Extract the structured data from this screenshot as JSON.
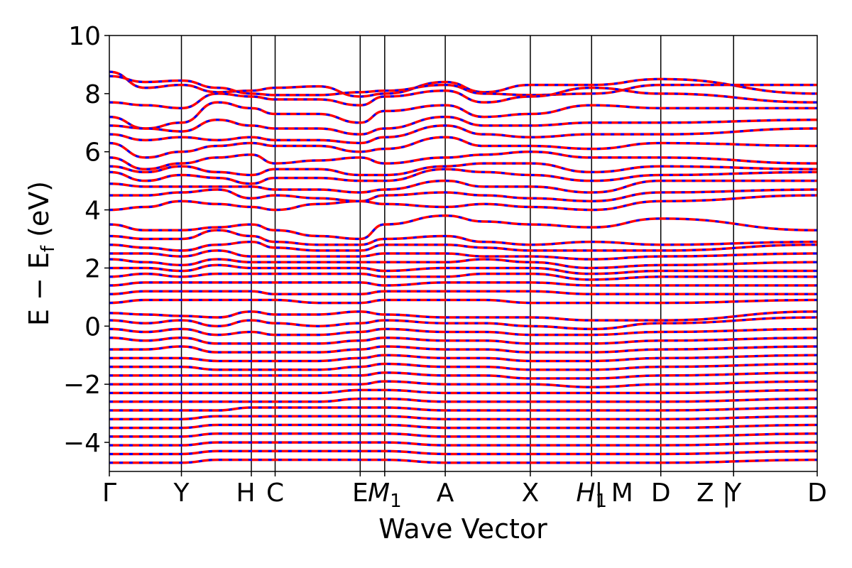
{
  "chart_data": {
    "type": "line",
    "xlabel": "Wave Vector",
    "ylabel_main": "E − E",
    "ylabel_sub": "f",
    "ylabel_unit": "(eV)",
    "ylim": [
      -5,
      10
    ],
    "yticks": [
      10,
      8,
      6,
      4,
      2,
      0,
      -2,
      -4
    ],
    "ytick_labels": [
      "10",
      "8",
      "6",
      "4",
      "2",
      "0",
      "−2",
      "−4"
    ],
    "kpoints": [
      {
        "label": "Γ",
        "x": 0.0
      },
      {
        "label": "Y",
        "x": 1.0
      },
      {
        "label": "H",
        "x": 1.97
      },
      {
        "label": "C",
        "x": 2.3
      },
      {
        "label": "E",
        "x": 3.48
      },
      {
        "label": "M",
        "sub": "1",
        "x": 3.82
      },
      {
        "label": "A",
        "x": 4.66
      },
      {
        "label": "X",
        "x": 5.84
      },
      {
        "label": "H",
        "sub": "1",
        "x": 6.69
      },
      {
        "label": "| M",
        "x": 6.69
      },
      {
        "label": "D",
        "x": 7.65
      },
      {
        "label": "Z |",
        "x": 8.66
      },
      {
        "label": "Y",
        "x": 8.66
      },
      {
        "label": "D",
        "x": 9.82
      }
    ],
    "x_vlines": [
      1.0,
      1.97,
      2.3,
      3.48,
      3.82,
      4.66,
      5.84,
      6.69,
      7.65,
      8.66
    ],
    "xlim": [
      0,
      9.82
    ],
    "segment_breaks": [
      6.69,
      8.66
    ],
    "series": [
      {
        "color": "#ff0000",
        "style": "solid"
      },
      {
        "color": "#0000ff",
        "style": "dashed"
      }
    ],
    "bands": [
      [
        8.75,
        8.2,
        8.3,
        8.05,
        8.1,
        8.2,
        8.25,
        7.9,
        8.0,
        8.4,
        8.05,
        8.3,
        8.3,
        8.5,
        8.0
      ],
      [
        8.6,
        8.4,
        8.45,
        8.2,
        8.0,
        7.95,
        7.95,
        8.05,
        8.1,
        8.3,
        8.0,
        7.95,
        8.0,
        8.3,
        8.3
      ],
      [
        7.7,
        7.6,
        7.5,
        8.0,
        7.9,
        7.8,
        7.8,
        7.6,
        7.9,
        8.1,
        7.7,
        7.9,
        8.2,
        8.0,
        7.7
      ],
      [
        7.2,
        6.8,
        7.0,
        7.7,
        7.5,
        7.3,
        7.3,
        7.0,
        7.4,
        7.6,
        7.2,
        7.3,
        7.6,
        7.5,
        7.5
      ],
      [
        6.9,
        6.8,
        6.7,
        7.1,
        6.9,
        6.8,
        6.8,
        6.6,
        6.8,
        7.2,
        6.9,
        6.9,
        7.0,
        7.0,
        7.1
      ],
      [
        6.6,
        6.4,
        6.5,
        6.4,
        6.5,
        6.4,
        6.4,
        6.3,
        6.5,
        6.9,
        6.6,
        6.5,
        6.6,
        6.6,
        6.8
      ],
      [
        6.3,
        5.8,
        6.0,
        6.2,
        6.3,
        6.2,
        6.2,
        6.0,
        6.1,
        6.5,
        6.2,
        6.2,
        6.1,
        6.3,
        6.2
      ],
      [
        5.8,
        5.4,
        5.6,
        5.8,
        5.9,
        5.6,
        5.7,
        5.8,
        5.6,
        5.8,
        5.9,
        6.0,
        5.8,
        5.8,
        5.6
      ],
      [
        5.5,
        5.3,
        5.5,
        5.3,
        5.2,
        5.4,
        5.4,
        5.2,
        5.2,
        5.5,
        5.6,
        5.6,
        5.3,
        5.5,
        5.4
      ],
      [
        5.3,
        5.0,
        5.2,
        5.1,
        4.9,
        5.1,
        5.1,
        5.0,
        5.0,
        5.4,
        5.3,
        5.2,
        5.0,
        5.2,
        5.3
      ],
      [
        4.9,
        4.8,
        4.8,
        4.8,
        4.8,
        4.7,
        4.7,
        4.6,
        4.7,
        5.0,
        4.8,
        4.8,
        4.6,
        5.0,
        5.0
      ],
      [
        4.5,
        4.5,
        4.6,
        4.7,
        4.4,
        4.5,
        4.4,
        4.3,
        4.5,
        4.6,
        4.5,
        4.4,
        4.3,
        4.6,
        4.7
      ],
      [
        4.0,
        4.1,
        4.3,
        4.2,
        4.1,
        4.0,
        4.2,
        4.3,
        4.2,
        4.1,
        4.2,
        4.1,
        4.0,
        4.3,
        4.5
      ],
      [
        3.5,
        3.3,
        3.3,
        3.4,
        3.5,
        3.3,
        3.1,
        3.0,
        3.5,
        3.8,
        3.6,
        3.5,
        3.4,
        3.7,
        3.3
      ],
      [
        3.1,
        3.0,
        3.0,
        3.3,
        3.1,
        2.9,
        2.8,
        2.8,
        3.0,
        3.1,
        2.9,
        2.8,
        2.9,
        2.8,
        2.9
      ],
      [
        2.8,
        2.7,
        2.6,
        2.8,
        2.9,
        2.7,
        2.6,
        2.6,
        2.8,
        2.8,
        2.7,
        2.6,
        2.6,
        2.6,
        2.8
      ],
      [
        2.5,
        2.5,
        2.4,
        2.6,
        2.4,
        2.4,
        2.4,
        2.4,
        2.5,
        2.5,
        2.4,
        2.4,
        2.3,
        2.4,
        2.5
      ],
      [
        2.3,
        2.2,
        2.1,
        2.3,
        2.2,
        2.2,
        2.2,
        2.2,
        2.2,
        2.2,
        2.3,
        2.2,
        2.0,
        2.1,
        2.2
      ],
      [
        2.0,
        2.0,
        1.9,
        2.1,
        2.0,
        2.0,
        2.0,
        2.0,
        1.9,
        2.0,
        2.0,
        2.0,
        1.8,
        1.9,
        1.9
      ],
      [
        1.7,
        1.8,
        1.7,
        1.8,
        1.8,
        1.8,
        1.8,
        1.8,
        1.7,
        1.7,
        1.8,
        1.8,
        1.6,
        1.7,
        1.7
      ],
      [
        1.4,
        1.5,
        1.5,
        1.5,
        1.5,
        1.5,
        1.5,
        1.5,
        1.4,
        1.5,
        1.5,
        1.5,
        1.4,
        1.4,
        1.4
      ],
      [
        1.1,
        1.2,
        1.2,
        1.2,
        1.2,
        1.1,
        1.1,
        1.1,
        1.2,
        1.2,
        1.2,
        1.2,
        1.1,
        1.1,
        1.1
      ],
      [
        0.8,
        0.9,
        0.9,
        0.9,
        0.9,
        0.9,
        0.8,
        0.8,
        0.9,
        0.9,
        0.9,
        0.8,
        0.8,
        0.8,
        0.9
      ],
      [
        0.45,
        0.4,
        0.35,
        0.3,
        0.5,
        0.4,
        0.4,
        0.5,
        0.4,
        0.3,
        0.3,
        0.3,
        0.2,
        0.2,
        0.5
      ],
      [
        0.2,
        0.1,
        0.2,
        0.0,
        0.2,
        0.1,
        0.0,
        0.1,
        0.2,
        0.1,
        0.1,
        0.0,
        -0.1,
        0.1,
        0.3
      ],
      [
        -0.1,
        -0.2,
        -0.1,
        -0.3,
        -0.2,
        -0.3,
        -0.3,
        -0.2,
        -0.1,
        -0.2,
        -0.2,
        -0.3,
        -0.3,
        -0.2,
        -0.1
      ],
      [
        -0.4,
        -0.5,
        -0.4,
        -0.6,
        -0.6,
        -0.6,
        -0.6,
        -0.5,
        -0.4,
        -0.5,
        -0.5,
        -0.6,
        -0.6,
        -0.5,
        -0.4
      ],
      [
        -0.8,
        -0.8,
        -0.7,
        -0.9,
        -0.9,
        -0.9,
        -0.9,
        -0.8,
        -0.7,
        -0.8,
        -0.8,
        -0.9,
        -0.9,
        -0.8,
        -0.7
      ],
      [
        -1.1,
        -1.1,
        -1.1,
        -1.2,
        -1.2,
        -1.2,
        -1.2,
        -1.1,
        -1.0,
        -1.1,
        -1.1,
        -1.2,
        -1.2,
        -1.1,
        -1.0
      ],
      [
        -1.4,
        -1.4,
        -1.4,
        -1.5,
        -1.5,
        -1.5,
        -1.5,
        -1.4,
        -1.3,
        -1.4,
        -1.4,
        -1.5,
        -1.5,
        -1.4,
        -1.3
      ],
      [
        -1.7,
        -1.7,
        -1.7,
        -1.7,
        -1.7,
        -1.7,
        -1.7,
        -1.7,
        -1.6,
        -1.7,
        -1.7,
        -1.8,
        -1.8,
        -1.7,
        -1.6
      ],
      [
        -2.0,
        -2.0,
        -2.0,
        -2.0,
        -2.0,
        -2.0,
        -2.0,
        -2.0,
        -1.9,
        -2.0,
        -2.0,
        -2.0,
        -2.1,
        -2.0,
        -1.9
      ],
      [
        -2.3,
        -2.3,
        -2.3,
        -2.3,
        -2.3,
        -2.3,
        -2.3,
        -2.2,
        -2.2,
        -2.3,
        -2.3,
        -2.3,
        -2.3,
        -2.3,
        -2.2
      ],
      [
        -2.6,
        -2.6,
        -2.6,
        -2.6,
        -2.6,
        -2.6,
        -2.6,
        -2.5,
        -2.5,
        -2.6,
        -2.6,
        -2.6,
        -2.6,
        -2.6,
        -2.5
      ],
      [
        -2.9,
        -2.9,
        -2.9,
        -2.9,
        -2.8,
        -2.8,
        -2.8,
        -2.8,
        -2.8,
        -2.9,
        -2.9,
        -2.9,
        -2.9,
        -2.9,
        -2.8
      ],
      [
        -3.2,
        -3.2,
        -3.2,
        -3.1,
        -3.1,
        -3.1,
        -3.1,
        -3.1,
        -3.1,
        -3.2,
        -3.2,
        -3.2,
        -3.2,
        -3.2,
        -3.1
      ],
      [
        -3.5,
        -3.5,
        -3.5,
        -3.4,
        -3.4,
        -3.4,
        -3.4,
        -3.4,
        -3.4,
        -3.5,
        -3.5,
        -3.5,
        -3.5,
        -3.5,
        -3.4
      ],
      [
        -3.8,
        -3.8,
        -3.8,
        -3.7,
        -3.7,
        -3.7,
        -3.7,
        -3.7,
        -3.7,
        -3.8,
        -3.8,
        -3.8,
        -3.8,
        -3.8,
        -3.7
      ],
      [
        -4.1,
        -4.1,
        -4.1,
        -4.0,
        -4.0,
        -4.0,
        -4.0,
        -4.0,
        -4.0,
        -4.1,
        -4.1,
        -4.1,
        -4.1,
        -4.1,
        -4.0
      ],
      [
        -4.4,
        -4.4,
        -4.4,
        -4.3,
        -4.3,
        -4.3,
        -4.3,
        -4.3,
        -4.3,
        -4.4,
        -4.4,
        -4.4,
        -4.4,
        -4.4,
        -4.3
      ],
      [
        -4.7,
        -4.7,
        -4.7,
        -4.6,
        -4.6,
        -4.6,
        -4.6,
        -4.6,
        -4.6,
        -4.7,
        -4.7,
        -4.7,
        -4.7,
        -4.7,
        -4.6
      ]
    ],
    "band_x": [
      0.0,
      0.5,
      1.0,
      1.5,
      1.97,
      2.3,
      2.9,
      3.48,
      3.82,
      4.66,
      5.2,
      5.84,
      6.69,
      7.65,
      9.82
    ]
  }
}
